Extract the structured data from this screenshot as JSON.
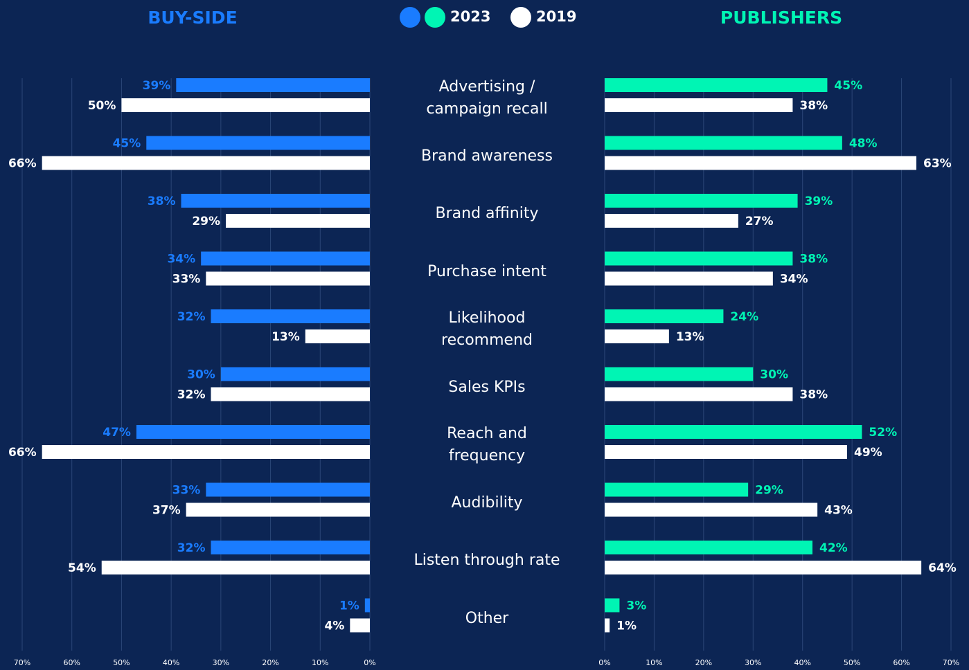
{
  "chart_data": {
    "type": "bar",
    "orientation": "horizontal",
    "categories": [
      "Advertising /\ncampaign recall",
      "Brand awareness",
      "Brand affinity",
      "Purchase intent",
      "Likelihood\nrecommend",
      "Sales KPIs",
      "Reach and\nfrequency",
      "Audibility",
      "Listen through rate",
      "Other"
    ],
    "legend": [
      {
        "name": "2023",
        "colors": [
          "#1a7cff",
          "#00f5b4"
        ]
      },
      {
        "name": "2019",
        "colors": [
          "#ffffff"
        ]
      }
    ],
    "grid": true,
    "panels": [
      {
        "title": "BUY-SIDE",
        "title_color": "#1a7cff",
        "xlim": [
          70,
          0
        ],
        "xticks": [
          {
            "value": 70,
            "label": "70%"
          },
          {
            "value": 60,
            "label": "60%"
          },
          {
            "value": 50,
            "label": "50%"
          },
          {
            "value": 40,
            "label": "40%"
          },
          {
            "value": 30,
            "label": "30%"
          },
          {
            "value": 20,
            "label": "20%"
          },
          {
            "value": 10,
            "label": "10%"
          },
          {
            "value": 0,
            "label": "0%"
          }
        ],
        "series": [
          {
            "color": "#1a7cff",
            "values": [
              39,
              45,
              38,
              34,
              32,
              30,
              47,
              33,
              32,
              1
            ],
            "value_labels": [
              "39%",
              "45%",
              "38%",
              "34%",
              "32%",
              "30%",
              "47%",
              "33%",
              "32%",
              "1%"
            ]
          },
          {
            "color": "#ffffff",
            "values": [
              50,
              66,
              29,
              33,
              13,
              32,
              66,
              37,
              54,
              4
            ],
            "value_labels": [
              "50%",
              "66%",
              "29%",
              "33%",
              "13%",
              "32%",
              "66%",
              "37%",
              "54%",
              "4%"
            ]
          }
        ]
      },
      {
        "title": "PUBLISHERS",
        "title_color": "#00f5b4",
        "xlim": [
          0,
          70
        ],
        "xticks": [
          {
            "value": 0,
            "label": "0%"
          },
          {
            "value": 10,
            "label": "10%"
          },
          {
            "value": 20,
            "label": "20%"
          },
          {
            "value": 30,
            "label": "30%"
          },
          {
            "value": 40,
            "label": "40%"
          },
          {
            "value": 50,
            "label": "50%"
          },
          {
            "value": 60,
            "label": "60%"
          },
          {
            "value": 70,
            "label": "70%"
          }
        ],
        "series": [
          {
            "color": "#00f5b4",
            "values": [
              45,
              48,
              39,
              38,
              24,
              30,
              52,
              29,
              42,
              3
            ],
            "value_labels": [
              "45%",
              "48%",
              "39%",
              "38%",
              "24%",
              "30%",
              "52%",
              "29%",
              "42%",
              "3%"
            ]
          },
          {
            "color": "#ffffff",
            "values": [
              38,
              63,
              27,
              34,
              13,
              38,
              49,
              43,
              64,
              1
            ],
            "value_labels": [
              "38%",
              "63%",
              "27%",
              "34%",
              "13%",
              "38%",
              "49%",
              "43%",
              "64%",
              "1%"
            ]
          }
        ]
      }
    ]
  }
}
